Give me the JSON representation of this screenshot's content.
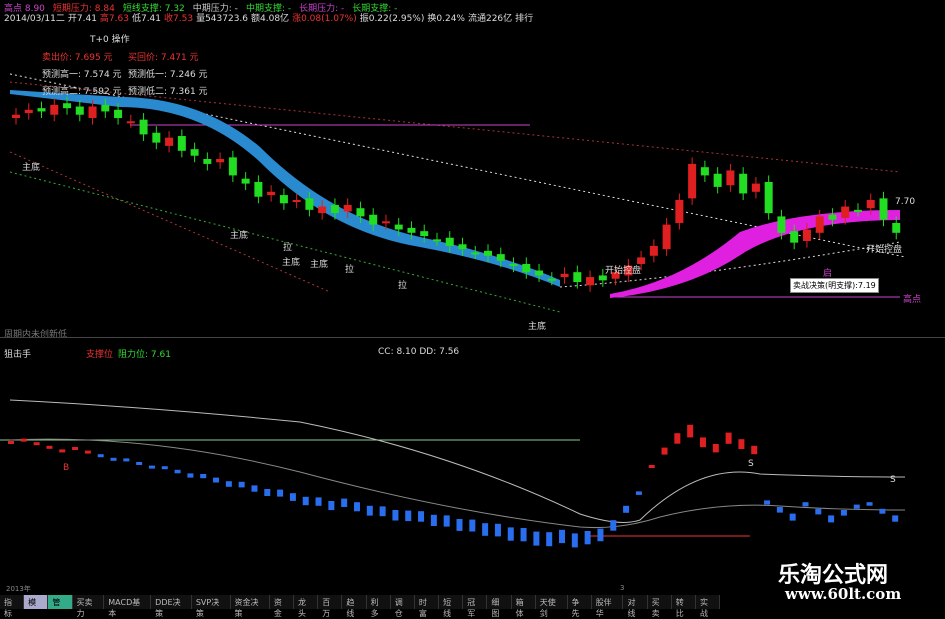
{
  "header": {
    "line1": [
      {
        "text": "高点 8.90",
        "color": "#c4c"
      },
      {
        "text": "短期压力: 8.84",
        "color": "#e33"
      },
      {
        "text": "短线支撑: 7.32",
        "color": "#3d3"
      },
      {
        "text": "中期压力: -",
        "color": "#ddd"
      },
      {
        "text": "中期支撑: -",
        "color": "#3d3"
      },
      {
        "text": "长期压力: -",
        "color": "#c4c"
      },
      {
        "text": "长期支撑: -",
        "color": "#3d3"
      }
    ],
    "line2": [
      "2014/03/11二",
      "开7.41",
      "高7.63",
      "低7.41",
      "收7.53",
      "量543723.6",
      "额4.08亿",
      "涨0.08(1.07%)",
      "振0.22(2.95%)",
      "换0.24%",
      "流通226亿",
      "排行"
    ]
  },
  "t0_panel": {
    "title": "T+0 操作",
    "sell_label": "卖出价:",
    "sell_value": "7.695 元",
    "buy_label": "买回价:",
    "buy_value": "7.471 元",
    "p1_label": "预测高一:",
    "p1_value": "7.574 元",
    "p2_label": "预测低一:",
    "p2_value": "7.246 元",
    "p3_label": "预测高二:",
    "p3_value": "7.592 元",
    "p4_label": "预测低二:",
    "p4_value": "7.361 元"
  },
  "annotations": {
    "zhudi": "主底",
    "la": "拉",
    "kaishi": "开始控盘",
    "qi": "启",
    "price_label": "7.70",
    "tooltip": "卖战决策(明支撑):7.19",
    "gaodian": "高点",
    "main_bottom": "主底",
    "bottom_note": "周期内未创新低"
  },
  "sub_panel": {
    "title": "狙击手",
    "red_label": "支撑位",
    "green_label": "阻力位: 7.61",
    "cc_dd": "CC: 8.10  DD: 7.56",
    "s_label": "S",
    "b_label": "B"
  },
  "xaxis": {
    "left": "2013年",
    "mid": "3"
  },
  "tabs": [
    "指标",
    "模板",
    "管理",
    "买卖力",
    "MACD基本",
    "DDE决策",
    "SVP决策",
    "资金决策",
    "资金",
    "龙头",
    "百万",
    "趋线",
    "利多",
    "调仓",
    "时富",
    "短线",
    "冠军",
    "细图",
    "箱体",
    "天使剑",
    "争先",
    "股伴华",
    "对线",
    "买卖",
    "转比",
    "实战"
  ],
  "watermark": {
    "name": "乐淘公式网",
    "url": "www.60lt.com"
  },
  "colors": {
    "up": "#e02020",
    "down": "#22dd22",
    "band_blue": "#2a8ad0",
    "band_magenta": "#e020e0",
    "indicator_blue": "#2a6ef0"
  },
  "candles_close": [
    8.22,
    8.25,
    8.24,
    8.28,
    8.26,
    8.22,
    8.27,
    8.24,
    8.2,
    8.18,
    8.1,
    8.05,
    8.08,
    8.0,
    7.97,
    7.92,
    7.95,
    7.85,
    7.8,
    7.72,
    7.75,
    7.68,
    7.7,
    7.64,
    7.66,
    7.62,
    7.67,
    7.6,
    7.55,
    7.57,
    7.52,
    7.5,
    7.48,
    7.46,
    7.42,
    7.4,
    7.38,
    7.36,
    7.33,
    7.3,
    7.26,
    7.24,
    7.22,
    7.25,
    7.2,
    7.23,
    7.21,
    7.26,
    7.3,
    7.35,
    7.42,
    7.55,
    7.7,
    7.92,
    7.85,
    7.78,
    7.88,
    7.74,
    7.8,
    7.62,
    7.5,
    7.44,
    7.52,
    7.6,
    7.58,
    7.66,
    7.64,
    7.7,
    7.58,
    7.5
  ],
  "indicator_bars": [
    2,
    3,
    2,
    1,
    0,
    1,
    0,
    -1,
    -2,
    -2,
    -3,
    -4,
    -4,
    -5,
    -6,
    -6,
    -7,
    -8,
    -8,
    -9,
    -10,
    -10,
    -11,
    -12,
    -12,
    -13,
    -12,
    -13,
    -14,
    -14,
    -15,
    -15,
    -15,
    -16,
    -16,
    -17,
    -17,
    -18,
    -18,
    -19,
    -19,
    -20,
    -20,
    -19,
    -20,
    -19,
    -18,
    -15,
    -10,
    -5,
    4,
    10,
    15,
    18,
    14,
    12,
    16,
    14,
    12,
    -6,
    -8,
    -10,
    -6,
    -8,
    -10,
    -8,
    -6,
    -5,
    -7,
    -9
  ]
}
